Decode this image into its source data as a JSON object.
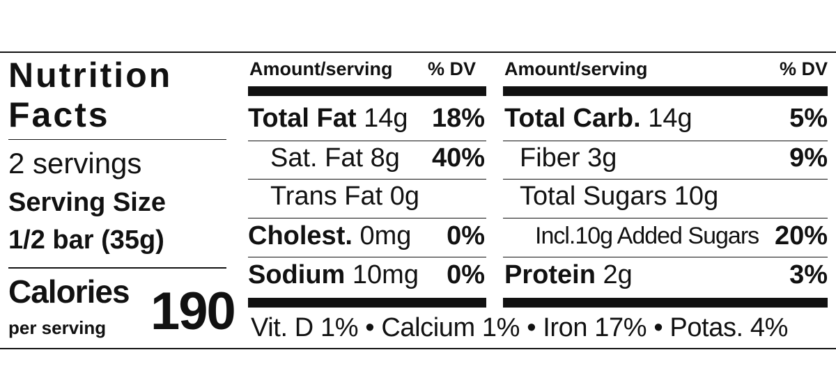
{
  "left": {
    "title_line1": "Nutrition",
    "title_line2": "Facts",
    "servings": "2 servings",
    "serving_size_label": "Serving Size",
    "serving_size_value": "1/2 bar (35g)",
    "calories_label": "Calories",
    "per_serving": "per serving",
    "calories_value": "190"
  },
  "col1": {
    "header_amount": "Amount/serving",
    "header_dv": "% DV",
    "rows": [
      {
        "name": "Total Fat",
        "amount": "14g",
        "dv": "18%"
      },
      {
        "name": "Sat. Fat",
        "amount": "8g",
        "dv": "40%"
      },
      {
        "name": "Trans Fat",
        "amount": "0g",
        "dv": ""
      },
      {
        "name": "Cholest.",
        "amount": "0mg",
        "dv": "0%"
      },
      {
        "name": "Sodium",
        "amount": "10mg",
        "dv": "0%"
      }
    ]
  },
  "col2": {
    "header_amount": "Amount/serving",
    "header_dv": "% DV",
    "rows": [
      {
        "name": "Total Carb.",
        "amount": "14g",
        "dv": "5%"
      },
      {
        "name": "Fiber",
        "amount": "3g",
        "dv": "9%"
      },
      {
        "name": "Total Sugars",
        "amount": "10g",
        "dv": ""
      },
      {
        "name": "Incl.10g Added Sugars",
        "amount": "",
        "dv": "20%"
      },
      {
        "name": "Protein",
        "amount": "2g",
        "dv": "3%"
      }
    ]
  },
  "footer": "Vit. D 1% • Calcium 1% • Iron 17% • Potas. 4%"
}
